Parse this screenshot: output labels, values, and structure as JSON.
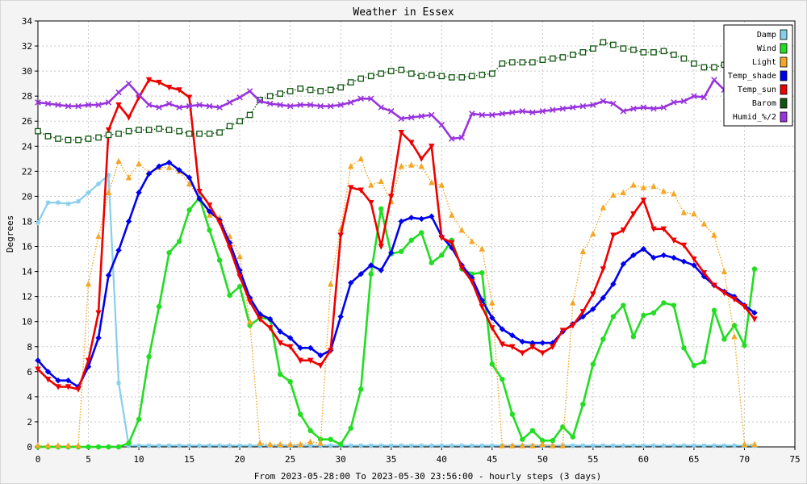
{
  "chart_data": {
    "type": "line",
    "title": "Weather in Essex",
    "xlabel": "From 2023-05-28:00 To 2023-05-30 23:56:00 - hourly steps (3 days)",
    "ylabel": "Degrees",
    "xlim": [
      0,
      75
    ],
    "ylim": [
      0,
      34
    ],
    "xticks": [
      0,
      5,
      10,
      15,
      20,
      25,
      30,
      35,
      40,
      45,
      50,
      55,
      60,
      65,
      70,
      75
    ],
    "yticks": [
      0,
      2,
      4,
      6,
      8,
      10,
      12,
      14,
      16,
      18,
      20,
      22,
      24,
      26,
      28,
      30,
      32,
      34
    ],
    "grid": true,
    "legend_position": "top-right",
    "series": [
      {
        "name": "Damp",
        "color": "#87ceeb",
        "line": "solid",
        "marker": "star",
        "x": [
          0,
          1,
          2,
          3,
          4,
          5,
          6,
          7,
          8,
          9,
          10,
          11,
          12,
          13,
          14,
          15,
          16,
          17,
          18,
          19,
          20,
          21,
          22,
          23,
          24,
          25,
          26,
          27,
          28,
          29,
          30,
          31,
          32,
          33,
          34,
          35,
          36,
          37,
          38,
          39,
          40,
          41,
          42,
          43,
          44,
          45,
          46,
          47,
          48,
          49,
          50,
          51,
          52,
          53,
          54,
          55,
          56,
          57,
          58,
          59,
          60,
          61,
          62,
          63,
          64,
          65,
          66,
          67,
          68,
          69,
          70,
          71
        ],
        "values": [
          17.9,
          19.5,
          19.5,
          19.4,
          19.6,
          20.3,
          21.0,
          21.7,
          5.1,
          0.1,
          0.1,
          0.1,
          0.1,
          0.1,
          0.1,
          0.1,
          0.1,
          0.1,
          0.1,
          0.1,
          0.1,
          0.1,
          0.1,
          0.1,
          0.1,
          0.1,
          0.1,
          0.1,
          0.1,
          0.1,
          0.1,
          0.1,
          0.1,
          0.1,
          0.1,
          0.1,
          0.1,
          0.1,
          0.1,
          0.1,
          0.1,
          0.1,
          0.1,
          0.1,
          0.1,
          0.1,
          0.1,
          0.1,
          0.1,
          0.1,
          0.1,
          0.1,
          0.1,
          0.1,
          0.1,
          0.1,
          0.1,
          0.1,
          0.1,
          0.1,
          0.1,
          0.1,
          0.1,
          0.1,
          0.1,
          0.1,
          0.1,
          0.1,
          0.1,
          0.1,
          0.1,
          0.1
        ]
      },
      {
        "name": "Wind",
        "color": "#22dd22",
        "line": "thick",
        "marker": "circle",
        "x": [
          0,
          1,
          2,
          3,
          4,
          5,
          6,
          7,
          8,
          9,
          10,
          11,
          12,
          13,
          14,
          15,
          16,
          17,
          18,
          19,
          20,
          21,
          22,
          23,
          24,
          25,
          26,
          27,
          28,
          29,
          30,
          31,
          32,
          33,
          34,
          35,
          36,
          37,
          38,
          39,
          40,
          41,
          42,
          43,
          44,
          45,
          46,
          47,
          48,
          49,
          50,
          51,
          52,
          53,
          54,
          55,
          56,
          57,
          58,
          59,
          60,
          61,
          62,
          63,
          64,
          65,
          66,
          67,
          68,
          69,
          70,
          71
        ],
        "values": [
          0.0,
          0.0,
          0.0,
          0.0,
          0.0,
          0.0,
          0.0,
          0.0,
          0.0,
          0.3,
          2.2,
          7.2,
          11.2,
          15.5,
          16.4,
          18.9,
          19.9,
          17.3,
          14.9,
          12.1,
          12.8,
          9.7,
          10.3,
          10.2,
          5.8,
          5.2,
          2.6,
          1.3,
          0.6,
          0.6,
          0.2,
          1.5,
          4.6,
          13.8,
          19.0,
          15.4,
          15.6,
          16.5,
          17.1,
          14.7,
          15.3,
          16.5,
          14.2,
          13.8,
          13.9,
          6.6,
          5.4,
          2.6,
          0.6,
          1.3,
          0.5,
          0.5,
          1.6,
          0.8,
          3.4,
          6.6,
          8.6,
          10.4,
          11.3,
          8.8,
          10.5,
          10.7,
          11.5,
          11.3,
          7.9,
          6.5,
          6.8,
          10.9,
          8.6,
          9.7,
          8.1,
          14.2
        ]
      },
      {
        "name": "Light",
        "color": "#f5a623",
        "line": "dotted",
        "marker": "triangle",
        "x": [
          0,
          1,
          2,
          3,
          4,
          5,
          6,
          7,
          8,
          9,
          10,
          11,
          12,
          13,
          14,
          15,
          16,
          17,
          18,
          19,
          20,
          21,
          22,
          23,
          24,
          25,
          26,
          27,
          28,
          29,
          30,
          31,
          32,
          33,
          34,
          35,
          36,
          37,
          38,
          39,
          40,
          41,
          42,
          43,
          44,
          45,
          46,
          47,
          48,
          49,
          50,
          51,
          52,
          53,
          54,
          55,
          56,
          57,
          58,
          59,
          60,
          61,
          62,
          63,
          64,
          65,
          66,
          67,
          68,
          69,
          70,
          71
        ],
        "values": [
          0.1,
          0.1,
          0.1,
          0.1,
          0.1,
          13.0,
          16.8,
          20.3,
          22.8,
          21.5,
          22.6,
          21.9,
          22.3,
          22.3,
          22.0,
          21.0,
          19.9,
          18.5,
          18.3,
          16.8,
          15.2,
          10.0,
          0.3,
          0.2,
          0.2,
          0.2,
          0.2,
          0.4,
          0.3,
          13.0,
          17.4,
          22.4,
          23.0,
          20.9,
          21.2,
          19.6,
          22.4,
          22.5,
          22.4,
          21.1,
          20.9,
          18.5,
          17.3,
          16.4,
          15.8,
          11.5,
          0.1,
          0.1,
          0.1,
          0.1,
          0.2,
          0.1,
          0.1,
          11.5,
          15.6,
          17.0,
          19.1,
          20.1,
          20.3,
          20.9,
          20.7,
          20.8,
          20.4,
          20.2,
          18.7,
          18.6,
          17.8,
          16.9,
          14.0,
          8.8,
          0.2,
          0.2
        ]
      },
      {
        "name": "Temp_shade",
        "color": "#0000ee",
        "line": "thick",
        "marker": "diamond",
        "x": [
          0,
          1,
          2,
          3,
          4,
          5,
          6,
          7,
          8,
          9,
          10,
          11,
          12,
          13,
          14,
          15,
          16,
          17,
          18,
          19,
          20,
          21,
          22,
          23,
          24,
          25,
          26,
          27,
          28,
          29,
          30,
          31,
          32,
          33,
          34,
          35,
          36,
          37,
          38,
          39,
          40,
          41,
          42,
          43,
          44,
          45,
          46,
          47,
          48,
          49,
          50,
          51,
          52,
          53,
          54,
          55,
          56,
          57,
          58,
          59,
          60,
          61,
          62,
          63,
          64,
          65,
          66,
          67,
          68,
          69,
          70,
          71
        ],
        "values": [
          6.9,
          6.0,
          5.3,
          5.3,
          4.8,
          6.4,
          8.7,
          13.7,
          15.7,
          18.0,
          20.3,
          21.8,
          22.4,
          22.7,
          22.1,
          21.5,
          19.8,
          18.8,
          18.1,
          16.3,
          14.1,
          11.9,
          10.6,
          10.2,
          9.2,
          8.7,
          7.9,
          7.9,
          7.3,
          7.7,
          10.4,
          13.1,
          13.8,
          14.5,
          14.1,
          15.5,
          18.0,
          18.3,
          18.2,
          18.4,
          16.8,
          15.9,
          14.5,
          13.5,
          11.7,
          10.3,
          9.4,
          8.9,
          8.4,
          8.3,
          8.3,
          8.3,
          9.2,
          9.8,
          10.4,
          11.0,
          11.9,
          13.0,
          14.6,
          15.3,
          15.8,
          15.1,
          15.3,
          15.1,
          14.8,
          14.5,
          13.6,
          12.9,
          12.4,
          12.0,
          11.3,
          10.7
        ]
      },
      {
        "name": "Temp_sun",
        "color": "#ee0000",
        "line": "thick",
        "marker": "triangle-down",
        "x": [
          0,
          1,
          2,
          3,
          4,
          5,
          6,
          7,
          8,
          9,
          10,
          11,
          12,
          13,
          14,
          15,
          16,
          17,
          18,
          19,
          20,
          21,
          22,
          23,
          24,
          25,
          26,
          27,
          28,
          29,
          30,
          31,
          32,
          33,
          34,
          35,
          36,
          37,
          38,
          39,
          40,
          41,
          42,
          43,
          44,
          45,
          46,
          47,
          48,
          49,
          50,
          51,
          52,
          53,
          54,
          55,
          56,
          57,
          58,
          59,
          60,
          61,
          62,
          63,
          64,
          65,
          66,
          67,
          68,
          69,
          70,
          71
        ],
        "values": [
          6.2,
          5.4,
          4.8,
          4.8,
          4.6,
          6.9,
          10.7,
          25.3,
          27.3,
          26.3,
          27.9,
          29.3,
          29.1,
          28.7,
          28.5,
          27.9,
          20.4,
          19.3,
          17.9,
          15.9,
          13.6,
          11.6,
          10.2,
          9.5,
          8.3,
          8.0,
          6.9,
          6.9,
          6.5,
          7.7,
          16.9,
          20.7,
          20.5,
          19.5,
          16.0,
          20.0,
          25.1,
          24.3,
          23.0,
          24.0,
          16.7,
          16.3,
          14.3,
          13.2,
          11.2,
          9.5,
          8.2,
          8.0,
          7.5,
          8.0,
          7.5,
          8.0,
          9.3,
          9.7,
          10.8,
          12.2,
          14.2,
          16.9,
          17.3,
          18.6,
          19.7,
          17.4,
          17.4,
          16.5,
          16.1,
          15.0,
          13.9,
          12.9,
          12.3,
          11.8,
          11.2,
          10.2
        ]
      },
      {
        "name": "Barom",
        "color": "#115511",
        "line": "dotted",
        "marker": "square",
        "x": [
          0,
          1,
          2,
          3,
          4,
          5,
          6,
          7,
          8,
          9,
          10,
          11,
          12,
          13,
          14,
          15,
          16,
          17,
          18,
          19,
          20,
          21,
          22,
          23,
          24,
          25,
          26,
          27,
          28,
          29,
          30,
          31,
          32,
          33,
          34,
          35,
          36,
          37,
          38,
          39,
          40,
          41,
          42,
          43,
          44,
          45,
          46,
          47,
          48,
          49,
          50,
          51,
          52,
          53,
          54,
          55,
          56,
          57,
          58,
          59,
          60,
          61,
          62,
          63,
          64,
          65,
          66,
          67,
          68,
          69,
          70,
          71
        ],
        "values": [
          25.2,
          24.8,
          24.6,
          24.5,
          24.5,
          24.6,
          24.7,
          24.9,
          25.0,
          25.2,
          25.3,
          25.3,
          25.4,
          25.3,
          25.2,
          25.0,
          25.0,
          25.0,
          25.1,
          25.6,
          26.0,
          26.5,
          27.7,
          28.0,
          28.2,
          28.4,
          28.6,
          28.5,
          28.4,
          28.5,
          28.7,
          29.1,
          29.4,
          29.6,
          29.8,
          30.0,
          30.1,
          29.8,
          29.6,
          29.7,
          29.6,
          29.5,
          29.5,
          29.6,
          29.7,
          29.8,
          30.6,
          30.7,
          30.7,
          30.7,
          30.9,
          31.0,
          31.1,
          31.3,
          31.5,
          31.8,
          32.3,
          32.1,
          31.8,
          31.7,
          31.5,
          31.5,
          31.6,
          31.3,
          31.0,
          30.6,
          30.3,
          30.3,
          30.5,
          30.8,
          30.9,
          31.1
        ]
      },
      {
        "name": "Humid_%/2",
        "color": "#9933dd",
        "line": "thick",
        "marker": "x",
        "x": [
          0,
          1,
          2,
          3,
          4,
          5,
          6,
          7,
          8,
          9,
          10,
          11,
          12,
          13,
          14,
          15,
          16,
          17,
          18,
          19,
          20,
          21,
          22,
          23,
          24,
          25,
          26,
          27,
          28,
          29,
          30,
          31,
          32,
          33,
          34,
          35,
          36,
          37,
          38,
          39,
          40,
          41,
          42,
          43,
          44,
          45,
          46,
          47,
          48,
          49,
          50,
          51,
          52,
          53,
          54,
          55,
          56,
          57,
          58,
          59,
          60,
          61,
          62,
          63,
          64,
          65,
          66,
          67,
          68,
          69,
          70,
          71
        ],
        "values": [
          27.5,
          27.4,
          27.3,
          27.2,
          27.2,
          27.3,
          27.3,
          27.5,
          28.3,
          29.0,
          28.1,
          27.3,
          27.1,
          27.4,
          27.1,
          27.2,
          27.3,
          27.2,
          27.1,
          27.5,
          27.9,
          28.4,
          27.6,
          27.4,
          27.3,
          27.2,
          27.3,
          27.3,
          27.2,
          27.2,
          27.3,
          27.5,
          27.8,
          27.8,
          27.1,
          26.8,
          26.2,
          26.3,
          26.4,
          26.5,
          25.7,
          24.6,
          24.7,
          26.6,
          26.5,
          26.5,
          26.6,
          26.7,
          26.8,
          26.7,
          26.8,
          26.9,
          27.0,
          27.1,
          27.2,
          27.3,
          27.6,
          27.4,
          26.8,
          27.0,
          27.1,
          27.0,
          27.1,
          27.5,
          27.6,
          28.0,
          27.9,
          29.3,
          28.5,
          28.0,
          28.0,
          28.0
        ]
      }
    ]
  }
}
